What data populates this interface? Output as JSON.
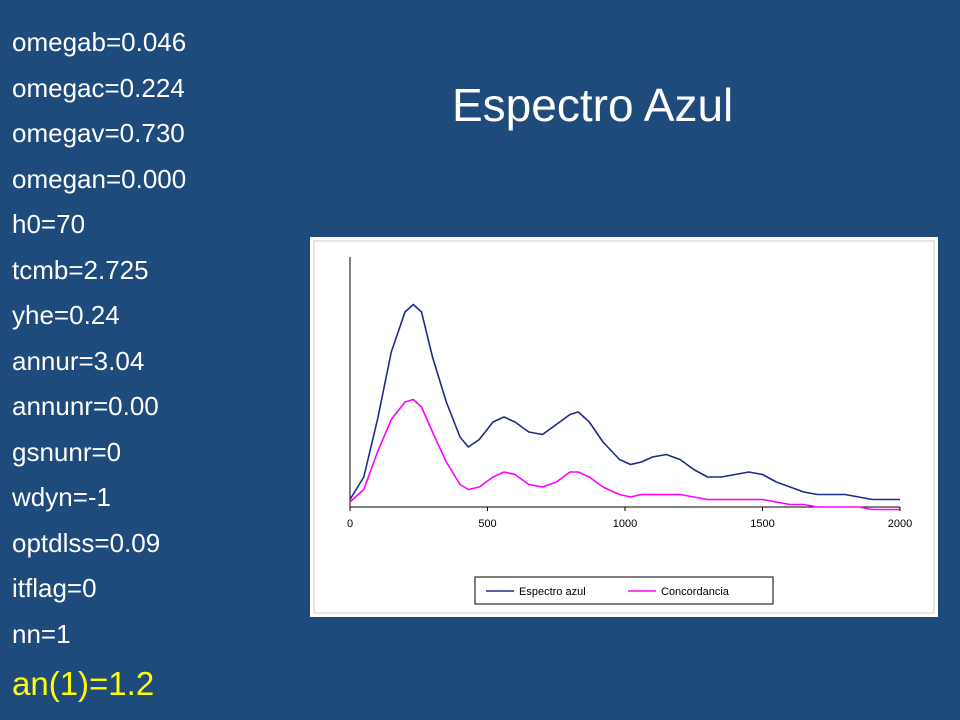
{
  "parameters": [
    "omegab=0.046",
    "omegac=0.224",
    "omegav=0.730",
    "omegan=0.000",
    "h0=70",
    "tcmb=2.725",
    "yhe=0.24",
    "annur=3.04",
    "annunr=0.00",
    "gsnunr=0",
    "wdyn=-1",
    "optdlss=0.09",
    "itflag=0",
    "nn=1"
  ],
  "highlight_parameter": "an(1)=1.2",
  "title": "Espectro Azul",
  "colors": {
    "background": "#1f4a7c",
    "highlight": "#ffff00",
    "series_blue": "#1f2a8a",
    "series_magenta": "#ff00ff"
  },
  "chart_data": {
    "type": "line",
    "title": "",
    "xlabel": "",
    "ylabel": "",
    "xlim": [
      0,
      2000
    ],
    "ylim": [
      0,
      1
    ],
    "x_ticks": [
      "0",
      "500",
      "1000",
      "1500",
      "2000"
    ],
    "grid": false,
    "legend_position": "bottom",
    "series": [
      {
        "name": "Espectro azul",
        "color": "#1f2a8a",
        "x": [
          0,
          50,
          100,
          150,
          200,
          230,
          260,
          300,
          350,
          400,
          430,
          470,
          520,
          560,
          600,
          650,
          700,
          750,
          800,
          830,
          870,
          920,
          980,
          1020,
          1060,
          1100,
          1150,
          1200,
          1250,
          1300,
          1350,
          1400,
          1450,
          1500,
          1550,
          1600,
          1650,
          1700,
          1750,
          1800,
          1850,
          1900,
          1950,
          2000
        ],
        "y": [
          0.03,
          0.12,
          0.35,
          0.62,
          0.78,
          0.81,
          0.78,
          0.6,
          0.42,
          0.28,
          0.24,
          0.27,
          0.34,
          0.36,
          0.34,
          0.3,
          0.29,
          0.33,
          0.37,
          0.38,
          0.34,
          0.26,
          0.19,
          0.17,
          0.18,
          0.2,
          0.21,
          0.19,
          0.15,
          0.12,
          0.12,
          0.13,
          0.14,
          0.13,
          0.1,
          0.08,
          0.06,
          0.05,
          0.05,
          0.05,
          0.04,
          0.03,
          0.03,
          0.03
        ]
      },
      {
        "name": "Concordancia",
        "color": "#ff00ff",
        "x": [
          0,
          50,
          100,
          150,
          200,
          230,
          260,
          300,
          350,
          400,
          430,
          470,
          520,
          560,
          600,
          650,
          700,
          750,
          800,
          830,
          870,
          920,
          980,
          1020,
          1060,
          1100,
          1150,
          1200,
          1250,
          1300,
          1350,
          1400,
          1450,
          1500,
          1550,
          1600,
          1650,
          1700,
          1750,
          1800,
          1850,
          1900,
          1950,
          2000
        ],
        "y": [
          0.02,
          0.07,
          0.22,
          0.35,
          0.42,
          0.43,
          0.4,
          0.3,
          0.18,
          0.09,
          0.07,
          0.08,
          0.12,
          0.14,
          0.13,
          0.09,
          0.08,
          0.1,
          0.14,
          0.14,
          0.12,
          0.08,
          0.05,
          0.04,
          0.05,
          0.05,
          0.05,
          0.05,
          0.04,
          0.03,
          0.03,
          0.03,
          0.03,
          0.03,
          0.02,
          0.01,
          0.01,
          0.0,
          0.0,
          0.0,
          0.0,
          -0.01,
          -0.01,
          -0.01
        ]
      }
    ]
  }
}
